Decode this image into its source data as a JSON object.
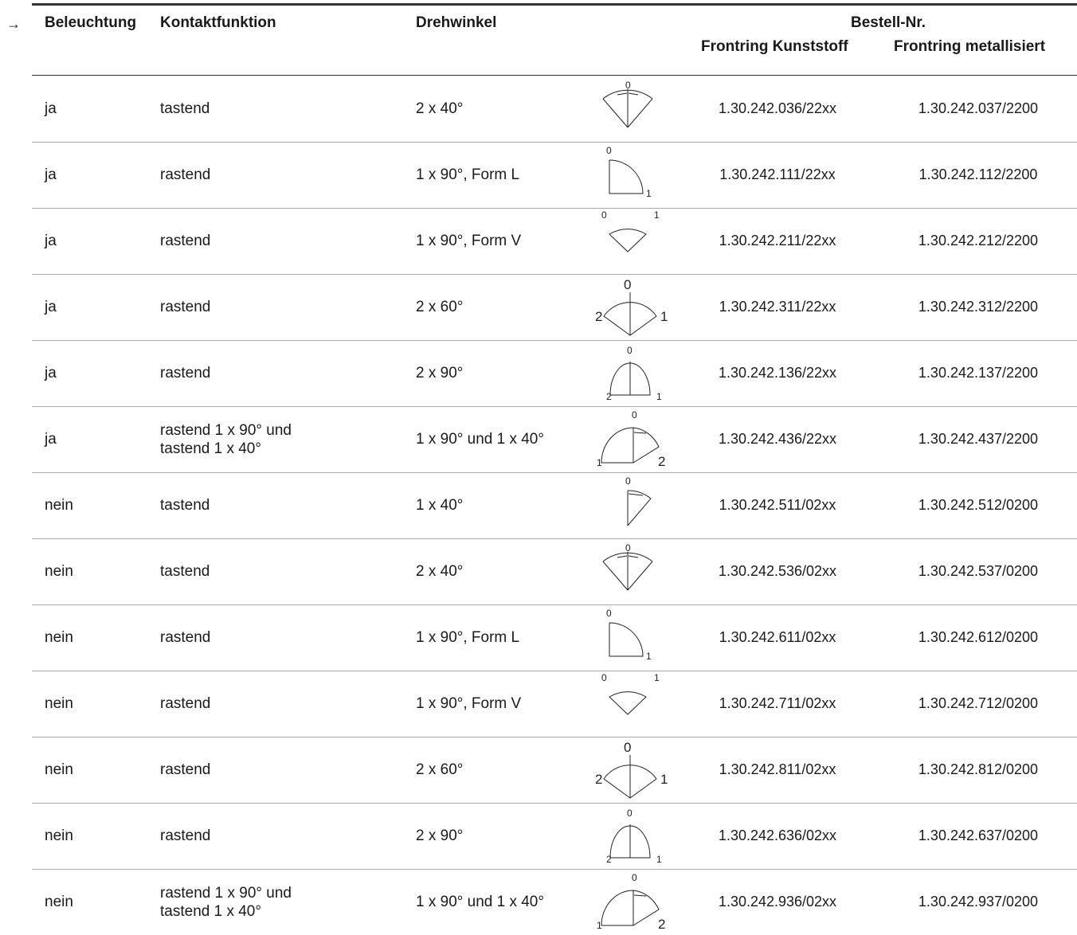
{
  "arrow": "→",
  "headers": {
    "beleuchtung": "Beleuchtung",
    "kontaktfunktion": "Kontaktfunktion",
    "drehwinkel": "Drehwinkel",
    "bestell_nr": "Bestell-Nr.",
    "frontring_kunststoff": "Frontring Kunststoff",
    "frontring_metallisiert": "Frontring metallisiert"
  },
  "rows": [
    {
      "bel": "ja",
      "kon": "tastend",
      "dre": "2 x 40°",
      "sym": "a",
      "ks": "1.30.242.036/22xx",
      "mt": "1.30.242.037/2200"
    },
    {
      "bel": "ja",
      "kon": "rastend",
      "dre": "1 x 90°, Form L",
      "sym": "b",
      "ks": "1.30.242.111/22xx",
      "mt": "1.30.242.112/2200"
    },
    {
      "bel": "ja",
      "kon": "rastend",
      "dre": "1 x 90°, Form V",
      "sym": "c",
      "ks": "1.30.242.211/22xx",
      "mt": "1.30.242.212/2200"
    },
    {
      "bel": "ja",
      "kon": "rastend",
      "dre": "2 x 60°",
      "sym": "d",
      "ks": "1.30.242.311/22xx",
      "mt": "1.30.242.312/2200"
    },
    {
      "bel": "ja",
      "kon": "rastend",
      "dre": "2 x 90°",
      "sym": "e",
      "ks": "1.30.242.136/22xx",
      "mt": "1.30.242.137/2200"
    },
    {
      "bel": "ja",
      "kon": "rastend 1 x 90° und\ntastend 1 x 40°",
      "dre": "1 x 90° und 1 x 40°",
      "sym": "f",
      "ks": "1.30.242.436/22xx",
      "mt": "1.30.242.437/2200"
    },
    {
      "bel": "nein",
      "kon": "tastend",
      "dre": "1 x 40°",
      "sym": "g",
      "ks": "1.30.242.511/02xx",
      "mt": "1.30.242.512/0200"
    },
    {
      "bel": "nein",
      "kon": "tastend",
      "dre": "2 x 40°",
      "sym": "a",
      "ks": "1.30.242.536/02xx",
      "mt": "1.30.242.537/0200"
    },
    {
      "bel": "nein",
      "kon": "rastend",
      "dre": "1 x 90°, Form L",
      "sym": "b",
      "ks": "1.30.242.611/02xx",
      "mt": "1.30.242.612/0200"
    },
    {
      "bel": "nein",
      "kon": "rastend",
      "dre": "1 x 90°, Form V",
      "sym": "c",
      "ks": "1.30.242.711/02xx",
      "mt": "1.30.242.712/0200"
    },
    {
      "bel": "nein",
      "kon": "rastend",
      "dre": "2 x 60°",
      "sym": "d",
      "ks": "1.30.242.811/02xx",
      "mt": "1.30.242.812/0200"
    },
    {
      "bel": "nein",
      "kon": "rastend",
      "dre": "2 x 90°",
      "sym": "e",
      "ks": "1.30.242.636/02xx",
      "mt": "1.30.242.637/0200"
    },
    {
      "bel": "nein",
      "kon": "rastend 1 x 90° und\ntastend 1 x 40°",
      "dre": "1 x 90° und 1 x 40°",
      "sym": "f",
      "ks": "1.30.242.936/02xx",
      "mt": "1.30.242.937/0200"
    }
  ]
}
